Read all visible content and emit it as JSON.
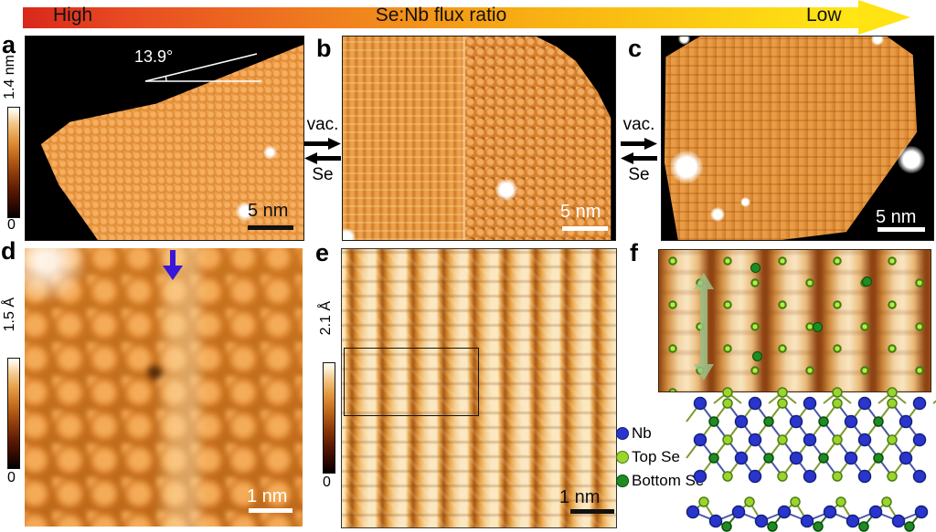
{
  "banner": {
    "high_label": "High",
    "title": "Se:Nb flux ratio",
    "low_label": "Low"
  },
  "transfer": {
    "top_label": "vac.",
    "bottom_label": "Se"
  },
  "panels": {
    "a": {
      "letter": "a",
      "colorbar_max": "1.4 nm",
      "colorbar_min": "0",
      "scalebar": "5 nm",
      "angle": "13.9°"
    },
    "b": {
      "letter": "b",
      "scalebar": "5 nm"
    },
    "c": {
      "letter": "c",
      "scalebar": "5 nm"
    },
    "d": {
      "letter": "d",
      "colorbar_max": "1.5 Å",
      "colorbar_min": "0",
      "scalebar": "1 nm"
    },
    "e": {
      "letter": "e",
      "colorbar_max": "2.1 Å",
      "colorbar_min": "0",
      "scalebar": "1 nm"
    },
    "f": {
      "letter": "f"
    }
  },
  "legend": {
    "items": [
      {
        "label": "Nb",
        "color": "#2a35cc",
        "edge": "#14207d"
      },
      {
        "label": "Top Se",
        "color": "#9ad52e",
        "edge": "#4e7d12"
      },
      {
        "label": "Bottom Se",
        "color": "#1e8c21",
        "edge": "#0b4a10"
      }
    ]
  },
  "colors": {
    "gradient_start": "#d8281b",
    "gradient_end": "#ffe714",
    "stm_orange": "#e18c35",
    "background_black": "#000000",
    "annotation_white": "#ffffff",
    "annotation_black": "#000000",
    "blue_arrow": "#3817d8",
    "green_arrow": "#9cc489"
  }
}
